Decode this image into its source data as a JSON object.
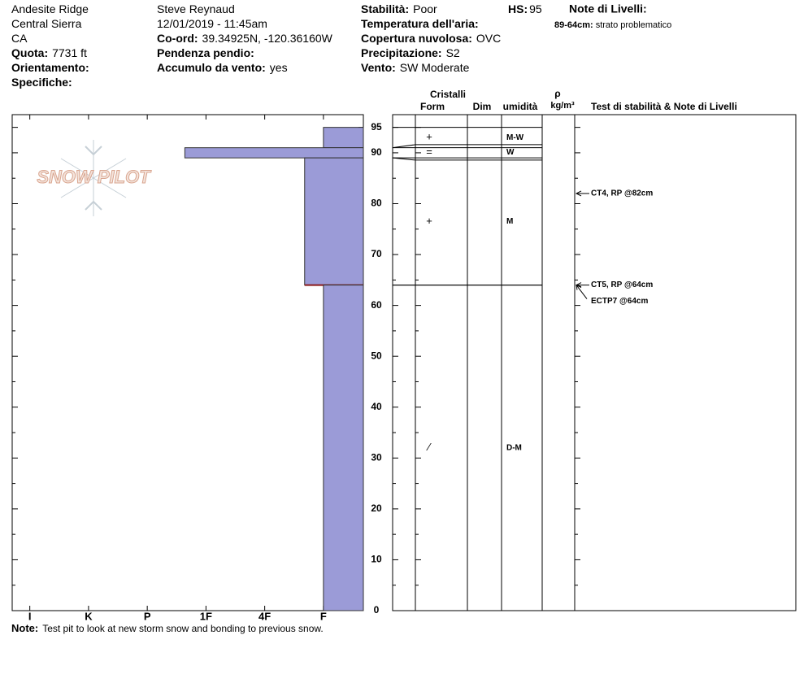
{
  "header": {
    "col1": [
      {
        "value": "Andesite Ridge"
      },
      {
        "value": "Central Sierra"
      },
      {
        "value": "CA"
      },
      {
        "label": "Quota:",
        "value": "7731 ft"
      },
      {
        "label": "Orientamento:"
      },
      {
        "label": "Specifiche:"
      }
    ],
    "col2": [
      {
        "value": "Steve Reynaud"
      },
      {
        "value": "12/01/2019 - 11:45am"
      },
      {
        "label": "Co-ord:",
        "value": "39.34925N, -120.36160W"
      },
      {
        "label": "Pendenza pendio:"
      },
      {
        "label": "Accumulo da vento:",
        "value": "yes"
      }
    ],
    "col3": [
      {
        "label": "Stabilità:",
        "value": "Poor"
      },
      {
        "label": "Temperatura dell'aria:"
      },
      {
        "label": "Copertura nuvolosa:",
        "value": "OVC"
      },
      {
        "label": "Precipitazione:",
        "value": "S2"
      },
      {
        "label": "Vento:",
        "value": "SW Moderate"
      }
    ],
    "hs": {
      "label": "HS:",
      "value": 95
    },
    "layer_notes": {
      "title": "Note di Livelli:",
      "items": [
        {
          "label": "89-64cm:",
          "value": "strato problematico"
        }
      ]
    }
  },
  "logo": "SNOW PILOT",
  "columns": {
    "crystals": "Cristalli",
    "form": "Form",
    "size": "Dim",
    "moisture": "umidità",
    "rho": "ρ",
    "density": "kg/m³",
    "tests": "Test di stabilità & Note di Livelli"
  },
  "chart_data": {
    "type": "snow-profile",
    "color": "#9b9bd7",
    "concern_color": "#8b1a1a",
    "ylim": [
      0,
      97.5
    ],
    "yticks": [
      0,
      10,
      20,
      30,
      40,
      50,
      60,
      70,
      80,
      90,
      95
    ],
    "minor_yticks": [
      5,
      15,
      25,
      35,
      45,
      55,
      65,
      75,
      85
    ],
    "xlim": [
      6.3,
      0.32
    ],
    "xticks": [
      {
        "value": 6,
        "label": "I"
      },
      {
        "value": 5,
        "label": "K"
      },
      {
        "value": 4,
        "label": "P"
      },
      {
        "value": 3,
        "label": "1F"
      },
      {
        "value": 2,
        "label": "4F"
      },
      {
        "value": 1,
        "label": "F"
      }
    ],
    "layers": [
      {
        "top": 95,
        "bottom": 91,
        "hardness": 1,
        "form": "+",
        "moisture": "M-W"
      },
      {
        "top": 91,
        "bottom": 89,
        "hardness": 3.36,
        "form": "=",
        "moisture": "W"
      },
      {
        "top": 89,
        "bottom": 64,
        "hardness": 1.32,
        "form": "+",
        "moisture": "M",
        "concern": true
      },
      {
        "top": 64,
        "bottom": 0,
        "hardness": 1,
        "form": "⁄",
        "moisture": "D-M"
      }
    ],
    "tests": [
      {
        "label": "CT4, RP @82cm",
        "depth": 82
      },
      {
        "label": "CT5, RP @64cm",
        "depth": 64
      },
      {
        "label": "ECTP7 @64cm",
        "depth": 64
      }
    ]
  },
  "note": {
    "label": "Note:",
    "value": "Test pit to look at new storm snow and bonding to previous snow."
  }
}
